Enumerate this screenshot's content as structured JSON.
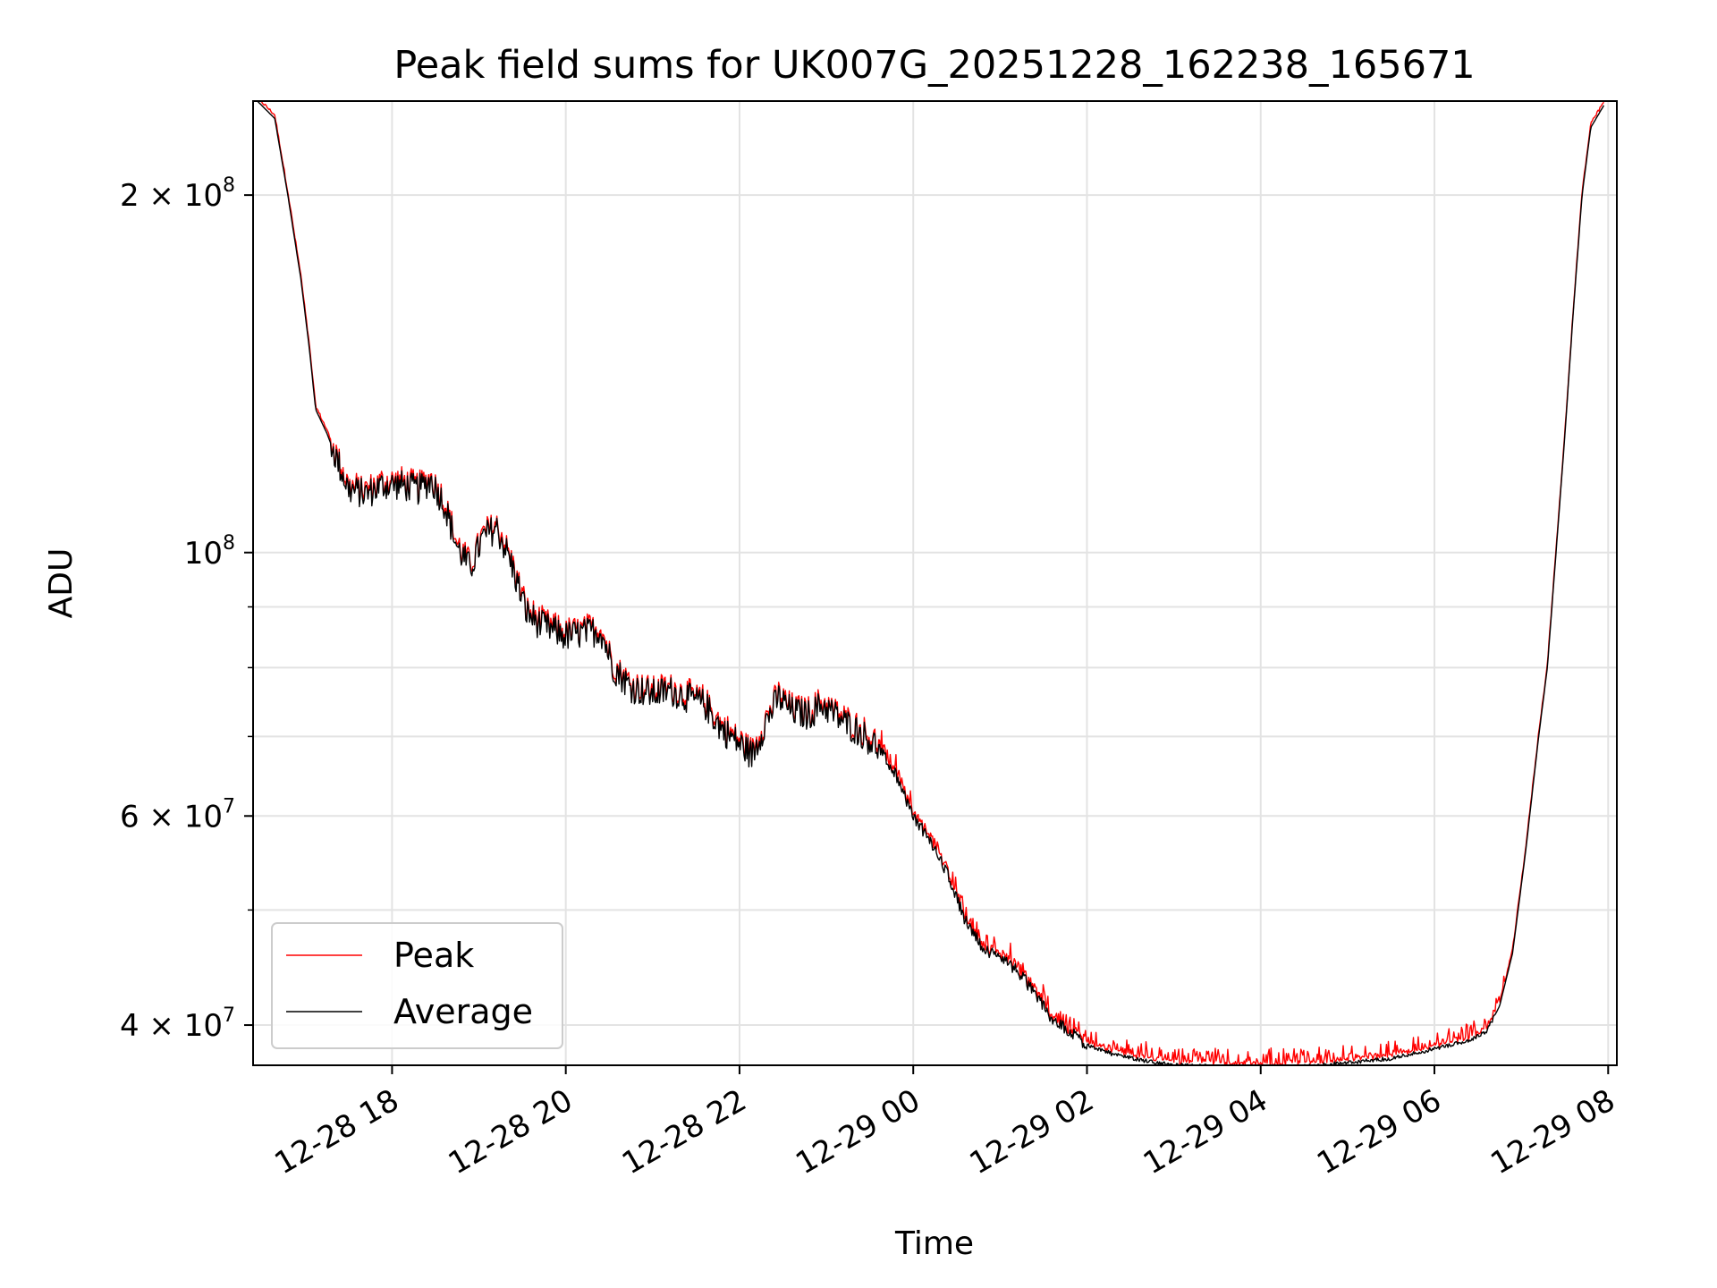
{
  "chart_data": {
    "type": "line",
    "title": "Peak field sums for UK007G_20251228_162238_165671",
    "xlabel": "Time",
    "ylabel": "ADU",
    "yscale": "log",
    "xlim": [
      -1.6,
      14.1
    ],
    "ylim": [
      37000000,
      240000000
    ],
    "grid": true,
    "legend_position": "lower-left",
    "x_ticks": [
      {
        "value": 0,
        "label": "12-28 18"
      },
      {
        "value": 2,
        "label": "12-28 20"
      },
      {
        "value": 4,
        "label": "12-28 22"
      },
      {
        "value": 6,
        "label": "12-29 00"
      },
      {
        "value": 8,
        "label": "12-29 02"
      },
      {
        "value": 10,
        "label": "12-29 04"
      },
      {
        "value": 12,
        "label": "12-29 06"
      },
      {
        "value": 14,
        "label": "12-29 08"
      }
    ],
    "y_major_ticks": [
      {
        "value": 40000000,
        "mantissa": "4",
        "exponent": "7"
      },
      {
        "value": 60000000,
        "mantissa": "6",
        "exponent": "7"
      },
      {
        "value": 100000000,
        "mantissa": "",
        "exponent": "8"
      },
      {
        "value": 200000000,
        "mantissa": "2",
        "exponent": "8"
      }
    ],
    "y_minor_ticks": [
      50000000,
      70000000,
      80000000,
      90000000
    ],
    "x_unit": "hours since 12-28 18:00",
    "average_series_keypoints": [
      [
        -1.55,
        240000000
      ],
      [
        -1.35,
        232000000
      ],
      [
        -1.2,
        200000000
      ],
      [
        -1.05,
        170000000
      ],
      [
        -0.95,
        148000000
      ],
      [
        -0.88,
        132000000
      ],
      [
        -0.75,
        126000000
      ],
      [
        -0.6,
        118000000
      ],
      [
        -0.5,
        113000000
      ],
      [
        -0.3,
        112000000
      ],
      [
        -0.1,
        114000000
      ],
      [
        0.1,
        114000000
      ],
      [
        0.3,
        113000000
      ],
      [
        0.45,
        115000000
      ],
      [
        0.6,
        110000000
      ],
      [
        0.75,
        101000000
      ],
      [
        0.9,
        97000000
      ],
      [
        1.05,
        103000000
      ],
      [
        1.2,
        105000000
      ],
      [
        1.35,
        99000000
      ],
      [
        1.55,
        89000000
      ],
      [
        1.7,
        87000000
      ],
      [
        1.85,
        86000000
      ],
      [
        2.0,
        85000000
      ],
      [
        2.2,
        85500000
      ],
      [
        2.4,
        86000000
      ],
      [
        2.55,
        80000000
      ],
      [
        2.75,
        77000000
      ],
      [
        3.0,
        76000000
      ],
      [
        3.2,
        76500000
      ],
      [
        3.4,
        75500000
      ],
      [
        3.6,
        74500000
      ],
      [
        3.8,
        71000000
      ],
      [
        4.0,
        69000000
      ],
      [
        4.15,
        67500000
      ],
      [
        4.3,
        72000000
      ],
      [
        4.45,
        75500000
      ],
      [
        4.6,
        73500000
      ],
      [
        4.8,
        73000000
      ],
      [
        4.95,
        74500000
      ],
      [
        5.2,
        72000000
      ],
      [
        5.4,
        70500000
      ],
      [
        5.6,
        68500000
      ],
      [
        5.8,
        65000000
      ],
      [
        6.0,
        60000000
      ],
      [
        6.2,
        57000000
      ],
      [
        6.4,
        53500000
      ],
      [
        6.6,
        49000000
      ],
      [
        6.8,
        46500000
      ],
      [
        7.0,
        45500000
      ],
      [
        7.2,
        44500000
      ],
      [
        7.4,
        42500000
      ],
      [
        7.6,
        40500000
      ],
      [
        7.8,
        39500000
      ],
      [
        8.0,
        38500000
      ],
      [
        8.3,
        37800000
      ],
      [
        8.6,
        37400000
      ],
      [
        9.0,
        37000000
      ],
      [
        9.5,
        36900000
      ],
      [
        10.0,
        36850000
      ],
      [
        10.5,
        36900000
      ],
      [
        11.0,
        37200000
      ],
      [
        11.5,
        37500000
      ],
      [
        12.0,
        38200000
      ],
      [
        12.4,
        38800000
      ],
      [
        12.6,
        39500000
      ],
      [
        12.75,
        41500000
      ],
      [
        12.9,
        46000000
      ],
      [
        13.05,
        56000000
      ],
      [
        13.2,
        70000000
      ],
      [
        13.3,
        80000000
      ],
      [
        13.4,
        100000000
      ],
      [
        13.5,
        125000000
      ],
      [
        13.6,
        160000000
      ],
      [
        13.7,
        200000000
      ],
      [
        13.8,
        228000000
      ],
      [
        13.95,
        238000000
      ]
    ],
    "series": [
      {
        "name": "Peak",
        "color": "#ff0000"
      },
      {
        "name": "Average",
        "color": "#000000"
      }
    ]
  }
}
